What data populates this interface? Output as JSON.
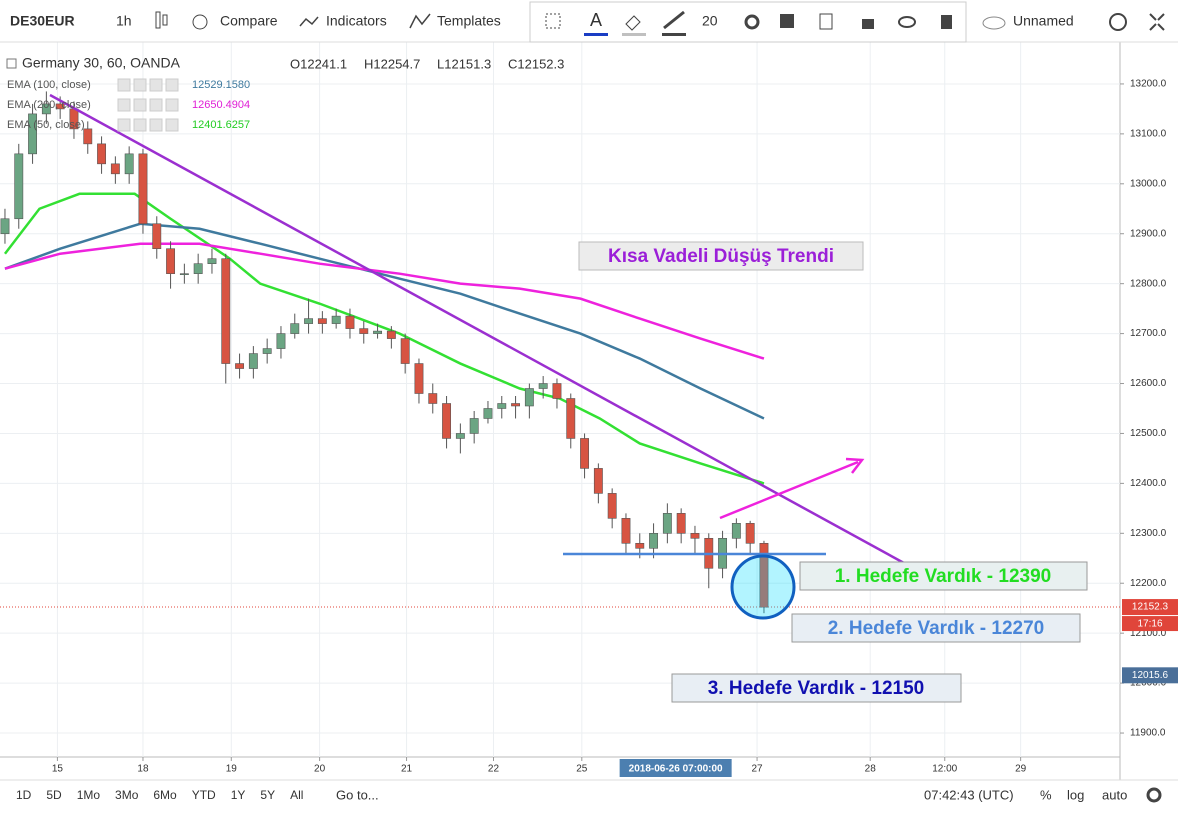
{
  "toolbar": {
    "symbol": "DE30EUR",
    "interval": "1h",
    "compare": "Compare",
    "indicators": "Indicators",
    "templates": "Templates",
    "font_size": "20",
    "layout": "Unnamed"
  },
  "bottom_bar": {
    "ranges": [
      "1D",
      "5D",
      "1Mo",
      "3Mo",
      "6Mo",
      "YTD",
      "1Y",
      "5Y",
      "All"
    ],
    "goto": "Go to...",
    "clock": "07:42:43 (UTC)",
    "percent": "%",
    "log": "log",
    "auto": "auto"
  },
  "legend": {
    "title": "Germany 30, 60, OANDA",
    "ohlc": [
      "O12241.1",
      "H12254.7",
      "L12151.3",
      "C12152.3"
    ],
    "indicators": [
      {
        "label": "EMA (100, close)",
        "value": "12529.1580",
        "color": "#3f7a9e"
      },
      {
        "label": "EMA (200, close)",
        "value": "12650.4904",
        "color": "#e01fd6"
      },
      {
        "label": "EMA (50, close)",
        "value": "12401.6257",
        "color": "#22cc22"
      }
    ]
  },
  "annotations": {
    "trend": "Kısa Vadeli Düşüş Trendi",
    "target1": "1. Hedefe Vardık - 12390",
    "target2": "2. Hedefe Vardık - 12270",
    "target3": "3. Hedefe Vardık - 12150"
  },
  "chart_data": {
    "type": "candlestick",
    "up_color": "#6ba583",
    "down_color": "#d75442",
    "open": [
      12900,
      12930,
      13060,
      13140,
      13160,
      13150,
      13110,
      13080,
      13040,
      13020,
      13060,
      12920,
      12870,
      12820,
      12820,
      12840,
      12850,
      12640,
      12630,
      12660,
      12670,
      12700,
      12720,
      12730,
      12720,
      12735,
      12710,
      12700,
      12705,
      12690,
      12640,
      12580,
      12560,
      12490,
      12500,
      12530,
      12550,
      12560,
      12555,
      12590,
      12600,
      12570,
      12490,
      12430,
      12380,
      12330,
      12280,
      12270,
      12300,
      12340,
      12300,
      12290,
      12230,
      12290,
      12320,
      12280
    ],
    "high": [
      12950,
      13080,
      13160,
      13185,
      13175,
      13165,
      13125,
      13095,
      13055,
      13075,
      13070,
      12935,
      12885,
      12840,
      12860,
      12870,
      12860,
      12660,
      12675,
      12690,
      12715,
      12740,
      12770,
      12745,
      12750,
      12750,
      12725,
      12720,
      12715,
      12700,
      12650,
      12600,
      12575,
      12520,
      12545,
      12565,
      12575,
      12575,
      12600,
      12615,
      12610,
      12580,
      12500,
      12440,
      12390,
      12340,
      12300,
      12320,
      12360,
      12350,
      12315,
      12300,
      12305,
      12330,
      12325,
      12285
    ],
    "low": [
      12880,
      12910,
      13040,
      13120,
      13130,
      13090,
      13060,
      13020,
      13000,
      13000,
      12900,
      12850,
      12790,
      12800,
      12800,
      12820,
      12600,
      12610,
      12610,
      12640,
      12650,
      12690,
      12700,
      12700,
      12710,
      12690,
      12680,
      12690,
      12670,
      12620,
      12560,
      12540,
      12470,
      12460,
      12480,
      12520,
      12530,
      12530,
      12530,
      12570,
      12550,
      12470,
      12410,
      12360,
      12310,
      12260,
      12250,
      12250,
      12280,
      12280,
      12260,
      12190,
      12210,
      12270,
      12260,
      12140
    ],
    "close": [
      12930,
      13060,
      13140,
      13160,
      13150,
      13110,
      13080,
      13040,
      13020,
      13060,
      12920,
      12870,
      12820,
      12820,
      12840,
      12850,
      12640,
      12630,
      12660,
      12670,
      12700,
      12720,
      12730,
      12720,
      12735,
      12710,
      12700,
      12705,
      12690,
      12640,
      12580,
      12560,
      12490,
      12500,
      12530,
      12550,
      12560,
      12555,
      12590,
      12600,
      12570,
      12490,
      12430,
      12380,
      12330,
      12280,
      12270,
      12300,
      12340,
      12300,
      12290,
      12230,
      12290,
      12320,
      12280,
      12152
    ],
    "series": [
      {
        "name": "EMA (50, close)",
        "color": "#33e033",
        "x": [
          0,
          2.5,
          5.4,
          9.4,
          12,
          16.3,
          18.5,
          22.8,
          28.6,
          33,
          37.3,
          40.2,
          43.1,
          46,
          50.4,
          55
        ],
        "values": [
          12860,
          12950,
          12980,
          12980,
          12930,
          12850,
          12800,
          12760,
          12700,
          12640,
          12590,
          12570,
          12530,
          12480,
          12440,
          12400
        ]
      },
      {
        "name": "EMA (100, close)",
        "color": "#3f7a9e",
        "x": [
          0,
          4,
          9.8,
          14.1,
          18.5,
          22.8,
          28.6,
          33,
          37.3,
          41.7,
          46,
          50.4,
          55
        ],
        "values": [
          12830,
          12870,
          12920,
          12910,
          12880,
          12850,
          12810,
          12780,
          12740,
          12700,
          12650,
          12590,
          12530
        ]
      },
      {
        "name": "EMA (200, close)",
        "color": "#ee22dd",
        "x": [
          0,
          4,
          9.8,
          14.1,
          18.5,
          22.8,
          28.6,
          33,
          37.3,
          41.7,
          46,
          50.4,
          55
        ],
        "values": [
          12830,
          12860,
          12880,
          12880,
          12860,
          12840,
          12820,
          12800,
          12790,
          12770,
          12730,
          12690,
          12650
        ]
      }
    ],
    "xlim": [
      -0.36,
      80.8
    ],
    "xticks": [
      {
        "value": 3.8,
        "label": "15"
      },
      {
        "value": 10,
        "label": "18"
      },
      {
        "value": 16.4,
        "label": "19"
      },
      {
        "value": 22.8,
        "label": "20"
      },
      {
        "value": 29.1,
        "label": "21"
      },
      {
        "value": 35.4,
        "label": "22"
      },
      {
        "value": 41.8,
        "label": "25"
      },
      {
        "value": 54.5,
        "label": "27"
      },
      {
        "value": 62.7,
        "label": "28"
      },
      {
        "value": 68.1,
        "label": "12:00"
      },
      {
        "value": 73.6,
        "label": "29"
      }
    ],
    "cursor_time": {
      "value": 48.6,
      "label": "2018-06-26 07:00:00"
    },
    "ylim": [
      11852,
      13284
    ],
    "yticks": [
      {
        "value": 11900,
        "label": "11900.0"
      },
      {
        "value": 12000,
        "label": "12000.0"
      },
      {
        "value": 12100,
        "label": "12100.0"
      },
      {
        "value": 12200,
        "label": "12200.0"
      },
      {
        "value": 12300,
        "label": "12300.0"
      },
      {
        "value": 12400,
        "label": "12400.0"
      },
      {
        "value": 12500,
        "label": "12500.0"
      },
      {
        "value": 12600,
        "label": "12600.0"
      },
      {
        "value": 12700,
        "label": "12700.0"
      },
      {
        "value": 12800,
        "label": "12800.0"
      },
      {
        "value": 12900,
        "label": "12900.0"
      },
      {
        "value": 13000,
        "label": "13000.0"
      },
      {
        "value": 13100,
        "label": "13100.0"
      },
      {
        "value": 13200,
        "label": "13200.0"
      }
    ],
    "price_tags": [
      {
        "value": 12152.3,
        "label": "12152.3",
        "time": "17:16",
        "color": "#e0453a"
      },
      {
        "value": 12015.6,
        "label": "12015.6",
        "color": "#4a6f99"
      }
    ],
    "grid": true
  }
}
